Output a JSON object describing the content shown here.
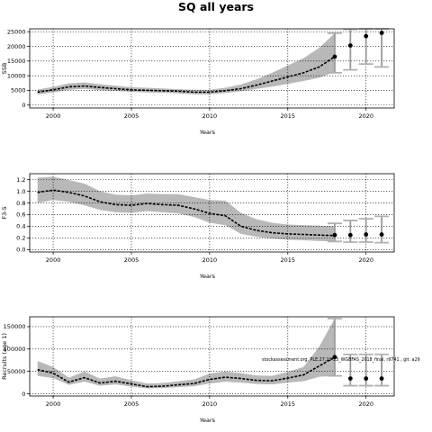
{
  "figure": {
    "title": "SQ all years",
    "annotation": "stockassessment.org, PLE.27.21-23_WGBFAS_2018_final, r9741 , git: a29"
  },
  "chart_data": [
    {
      "type": "line",
      "ylabel": "SSB",
      "xlabel": "Years",
      "xlim": [
        1998.5,
        2021.8
      ],
      "ylim": [
        -1000,
        26000
      ],
      "xticks": [
        2000,
        2005,
        2010,
        2015,
        2020
      ],
      "yticks": [
        0,
        5000,
        10000,
        15000,
        20000,
        25000
      ],
      "grid": true,
      "x": [
        1999,
        2000,
        2001,
        2002,
        2003,
        2004,
        2005,
        2006,
        2007,
        2008,
        2009,
        2010,
        2011,
        2012,
        2013,
        2014,
        2015,
        2016,
        2017,
        2018
      ],
      "estimate": [
        4400,
        5200,
        6200,
        6500,
        6000,
        5600,
        5200,
        5000,
        4900,
        4700,
        4400,
        4400,
        4900,
        5600,
        6800,
        8200,
        9600,
        11000,
        13000,
        16500
      ],
      "lower": [
        3600,
        4300,
        5200,
        5500,
        5100,
        4800,
        4500,
        4300,
        4200,
        4000,
        3700,
        3700,
        4100,
        4700,
        5500,
        6300,
        7200,
        8200,
        9300,
        11300
      ],
      "upper": [
        5300,
        6200,
        7400,
        7700,
        7100,
        6600,
        6100,
        5900,
        5700,
        5400,
        5200,
        5200,
        5900,
        7000,
        8800,
        11000,
        13500,
        16000,
        19500,
        24500
      ],
      "forecast": {
        "x": [
          2018,
          2019,
          2020,
          2021
        ],
        "median": [
          16500,
          20300,
          23500,
          24600
        ],
        "lower": [
          11000,
          12000,
          14000,
          13000
        ],
        "upper": [
          24500,
          25800,
          26000,
          26000
        ]
      }
    },
    {
      "type": "line",
      "ylabel": "F3-5",
      "xlabel": "Years",
      "xlim": [
        1998.5,
        2021.8
      ],
      "ylim": [
        -0.04,
        1.3
      ],
      "xticks": [
        2000,
        2005,
        2010,
        2015,
        2020
      ],
      "yticks": [
        0.0,
        0.2,
        0.4,
        0.6,
        0.8,
        1.0,
        1.2
      ],
      "grid": true,
      "x": [
        1999,
        2000,
        2001,
        2002,
        2003,
        2004,
        2005,
        2006,
        2007,
        2008,
        2009,
        2010,
        2011,
        2012,
        2013,
        2014,
        2015,
        2016,
        2017,
        2018
      ],
      "estimate": [
        0.98,
        1.02,
        0.98,
        0.92,
        0.82,
        0.77,
        0.76,
        0.79,
        0.77,
        0.76,
        0.7,
        0.62,
        0.58,
        0.4,
        0.33,
        0.29,
        0.27,
        0.26,
        0.25,
        0.24
      ],
      "lower": [
        0.8,
        0.85,
        0.82,
        0.76,
        0.68,
        0.64,
        0.63,
        0.66,
        0.64,
        0.62,
        0.56,
        0.46,
        0.42,
        0.27,
        0.22,
        0.19,
        0.17,
        0.16,
        0.15,
        0.14
      ],
      "upper": [
        1.23,
        1.25,
        1.19,
        1.13,
        1.0,
        0.94,
        0.93,
        0.96,
        0.95,
        0.95,
        0.9,
        0.85,
        0.84,
        0.63,
        0.52,
        0.46,
        0.43,
        0.42,
        0.41,
        0.4
      ],
      "forecast": {
        "x": [
          2018,
          2019,
          2020,
          2021
        ],
        "median": [
          0.25,
          0.25,
          0.26,
          0.26
        ],
        "lower": [
          0.14,
          0.13,
          0.13,
          0.12
        ],
        "upper": [
          0.45,
          0.5,
          0.53,
          0.57
        ]
      }
    },
    {
      "type": "line",
      "ylabel": "Recruits (age 1)",
      "xlabel": "Years",
      "xlim": [
        1998.5,
        2021.8
      ],
      "ylim": [
        -5000,
        172000
      ],
      "xticks": [
        2000,
        2005,
        2010,
        2015,
        2020
      ],
      "yticks": [
        0,
        50000,
        100000,
        150000
      ],
      "grid": true,
      "x": [
        1999,
        2000,
        2001,
        2002,
        2003,
        2004,
        2005,
        2006,
        2007,
        2008,
        2009,
        2010,
        2011,
        2012,
        2013,
        2014,
        2015,
        2016,
        2017,
        2018
      ],
      "estimate": [
        54000,
        46000,
        26000,
        36000,
        24000,
        28000,
        22000,
        16000,
        17000,
        20000,
        23000,
        32000,
        37000,
        34000,
        30000,
        29000,
        35000,
        42000,
        62000,
        82000
      ],
      "lower": [
        40000,
        35000,
        20000,
        27000,
        18000,
        21000,
        16000,
        12000,
        13000,
        15000,
        17000,
        23000,
        27000,
        25000,
        22000,
        21000,
        25000,
        28000,
        38000,
        40000
      ],
      "upper": [
        73000,
        60000,
        36000,
        50000,
        34000,
        39000,
        30000,
        23000,
        24000,
        28000,
        32000,
        45000,
        50000,
        46000,
        41000,
        40000,
        49000,
        60000,
        105000,
        168000
      ],
      "forecast": {
        "x": [
          2018,
          2019,
          2020,
          2021
        ],
        "median": [
          82000,
          34000,
          34000,
          34000
        ],
        "lower": [
          40000,
          18000,
          18000,
          18000
        ],
        "upper": [
          168000,
          88000,
          88000,
          88000
        ]
      }
    }
  ]
}
